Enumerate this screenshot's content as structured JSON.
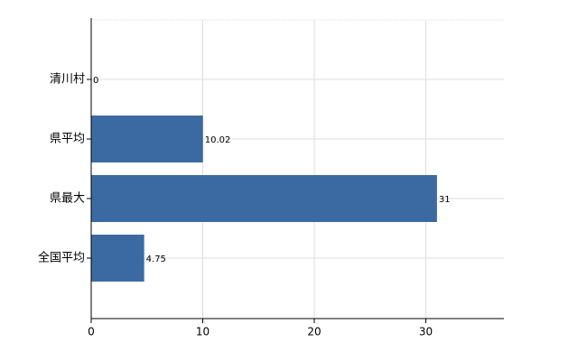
{
  "chart_data": {
    "type": "bar",
    "orientation": "horizontal",
    "categories": [
      "清川村",
      "県平均",
      "県最大",
      "全国平均"
    ],
    "values": [
      0,
      10.02,
      31,
      4.75
    ],
    "color": "#3b6aa3",
    "xlim": [
      0,
      37
    ],
    "xticks": [
      0,
      10,
      20,
      30
    ],
    "grid": true
  }
}
